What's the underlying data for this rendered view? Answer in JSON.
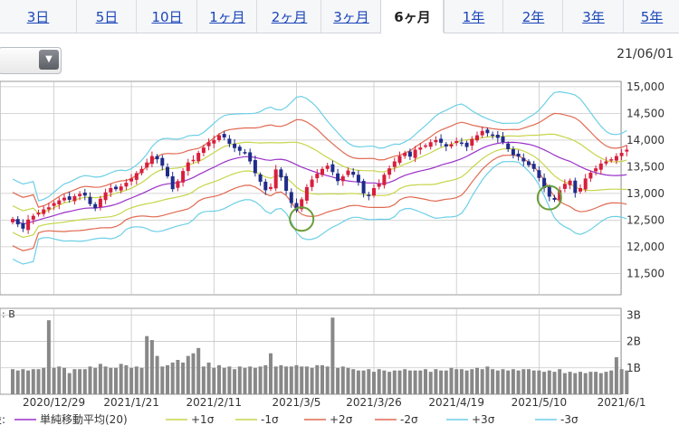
{
  "tabs": [
    {
      "label": "3日",
      "active": false
    },
    {
      "label": "5日",
      "active": false
    },
    {
      "label": "10日",
      "active": false
    },
    {
      "label": "1ヶ月",
      "active": false
    },
    {
      "label": "2ヶ月",
      "active": false
    },
    {
      "label": "3ヶ月",
      "active": false
    },
    {
      "label": "6ヶ月",
      "active": true
    },
    {
      "label": "1年",
      "active": false
    },
    {
      "label": "2年",
      "active": false
    },
    {
      "label": "3年",
      "active": false
    },
    {
      "label": "5年",
      "active": false
    }
  ],
  "dropdown": {
    "value": "",
    "icon": "triangle-down-icon"
  },
  "header_date": "21/06/01",
  "chart_data": {
    "type": "candlestick",
    "price_axis": {
      "ylim": [
        11100,
        15100
      ],
      "ticks": [
        "15,000",
        "14,500",
        "14,000",
        "13,500",
        "13,000",
        "12,500",
        "12,000",
        "11,500"
      ]
    },
    "volume_axis": {
      "label": ": B",
      "ticks": [
        "3B",
        "2B",
        "1B"
      ]
    },
    "x_ticks": [
      "2020/12/29",
      "2021/1/21",
      "2021/2/11",
      "2021/3/5",
      "2021/3/26",
      "2021/4/19",
      "2021/5/10",
      "2021/6/1"
    ],
    "sessions": 120,
    "close": [
      12520,
      12420,
      12340,
      12510,
      12580,
      12640,
      12700,
      12740,
      12820,
      12870,
      12920,
      12880,
      12950,
      12990,
      12960,
      12800,
      12720,
      12900,
      13020,
      13100,
      13080,
      13130,
      13200,
      13280,
      13380,
      13460,
      13580,
      13700,
      13640,
      13520,
      13320,
      13080,
      13230,
      13420,
      13580,
      13630,
      13760,
      13860,
      13960,
      14000,
      14090,
      14050,
      13930,
      13850,
      13800,
      13770,
      13600,
      13380,
      13220,
      13060,
      13120,
      13450,
      13300,
      13050,
      12820,
      12680,
      12890,
      13120,
      13260,
      13370,
      13460,
      13520,
      13400,
      13230,
      13320,
      13430,
      13350,
      13210,
      13000,
      12960,
      13100,
      13180,
      13350,
      13470,
      13600,
      13700,
      13760,
      13690,
      13820,
      13860,
      13900,
      13960,
      14000,
      13950,
      13880,
      13920,
      13980,
      13950,
      13870,
      14020,
      14090,
      14170,
      14130,
      14100,
      14040,
      13960,
      13830,
      13720,
      13690,
      13600,
      13530,
      13460,
      13290,
      13100,
      12940,
      12880,
      13060,
      13180,
      13240,
      13010,
      13100,
      13280,
      13390,
      13470,
      13560,
      13600,
      13640,
      13700,
      13760,
      13820
    ],
    "volume": [
      0.95,
      0.9,
      0.95,
      0.9,
      0.95,
      0.95,
      1.0,
      2.8,
      1.0,
      1.05,
      1.0,
      0.8,
      0.95,
      0.95,
      0.95,
      1.05,
      1.0,
      1.15,
      1.05,
      1.0,
      1.0,
      1.15,
      1.1,
      1.0,
      1.05,
      1.0,
      2.2,
      2.05,
      1.45,
      1.05,
      1.1,
      1.2,
      1.3,
      1.2,
      1.45,
      1.55,
      1.75,
      1.05,
      1.2,
      1.0,
      1.1,
      1.0,
      1.05,
      0.95,
      1.05,
      1.0,
      1.05,
      1.0,
      1.05,
      1.1,
      1.55,
      1.05,
      1.1,
      1.05,
      1.05,
      1.1,
      1.05,
      1.05,
      1.0,
      1.1,
      1.1,
      1.05,
      2.9,
      1.0,
      1.05,
      1.0,
      0.95,
      0.9,
      0.9,
      0.95,
      0.85,
      0.95,
      0.9,
      0.85,
      0.9,
      0.9,
      0.95,
      0.9,
      0.9,
      0.9,
      0.95,
      0.85,
      0.95,
      0.9,
      0.9,
      1.0,
      0.95,
      0.95,
      0.9,
      0.95,
      1.0,
      0.95,
      1.05,
      0.95,
      0.9,
      0.95,
      0.9,
      0.95,
      0.9,
      0.95,
      0.95,
      0.9,
      0.9,
      0.85,
      0.9,
      0.85,
      0.95,
      0.8,
      0.85,
      0.8,
      0.85,
      0.8,
      0.85,
      0.85,
      0.8,
      0.85,
      0.9,
      1.4,
      0.95,
      0.9
    ],
    "moving_average_period": 20,
    "sigma_bands": [
      1,
      2,
      3
    ],
    "annotations": [
      {
        "shape": "circle",
        "session": 56,
        "value": 12520,
        "color": "#6a9e3a"
      },
      {
        "shape": "circle",
        "session": 104,
        "value": 12920,
        "color": "#6a9e3a"
      }
    ],
    "legend": [
      {
        "label": "単純移動平均(20)",
        "color": "#9b30c8"
      },
      {
        "label": "+1σ",
        "color": "#c6d64a"
      },
      {
        "label": "-1σ",
        "color": "#c6d64a"
      },
      {
        "label": "+2σ",
        "color": "#e06a52"
      },
      {
        "label": "-2σ",
        "color": "#e06a52"
      },
      {
        "label": "+3σ",
        "color": "#6dcfe6"
      },
      {
        "label": "-3σ",
        "color": "#6dcfe6"
      }
    ],
    "legend_prefix": "設:",
    "colors": {
      "up": "#d81e3c",
      "down": "#1f2c8a",
      "volume": "#888888",
      "grid": "#c8c8c8"
    }
  }
}
